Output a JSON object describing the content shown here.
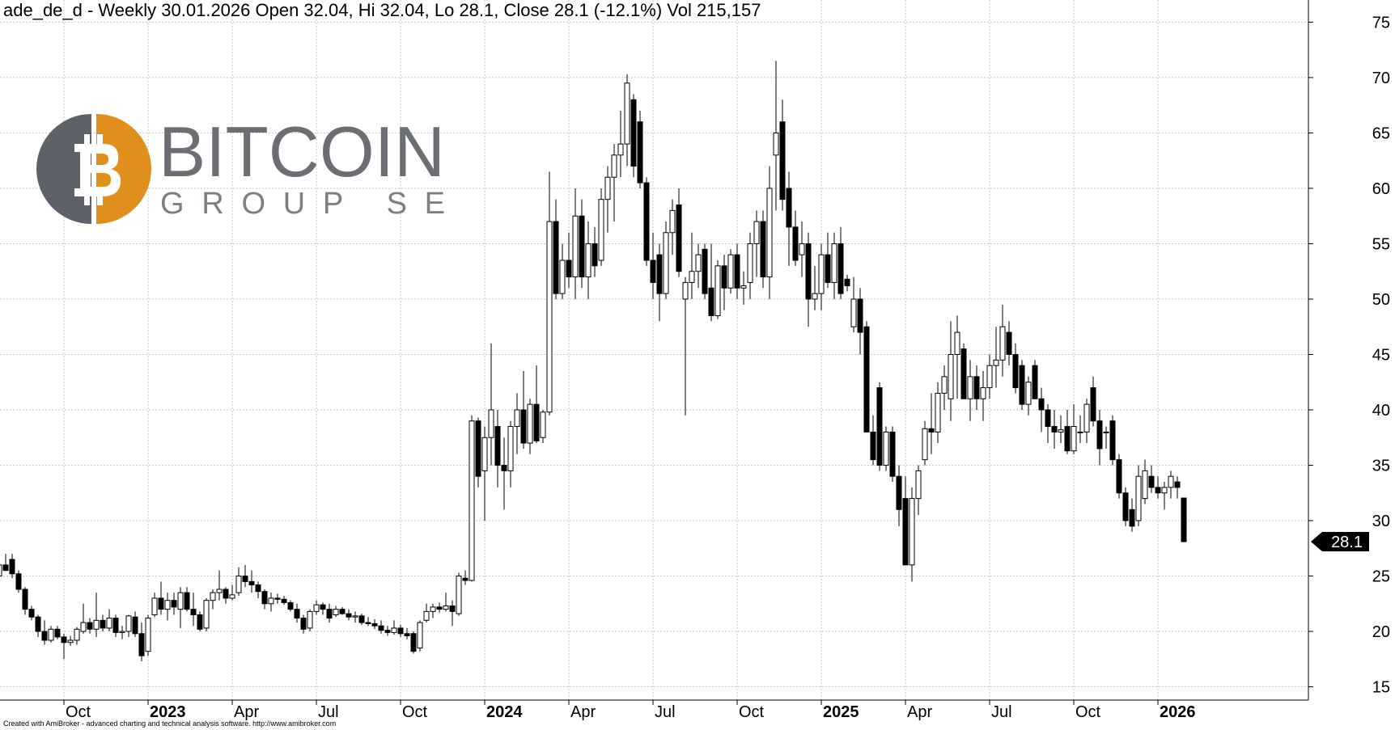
{
  "chart_data": {
    "type": "candlestick",
    "title": "ade_de_d - Weekly 30.01.2026 Open 32.04, Hi 32.04, Lo 28.1, Close 28.1 (-12.1%) Vol 215,157",
    "categories": [
      null,
      null,
      null,
      null,
      null,
      null,
      null,
      null,
      null,
      null,
      "Oct",
      null,
      null,
      null,
      null,
      null,
      null,
      null,
      null,
      null,
      null,
      null,
      null,
      "2023",
      null,
      null,
      null,
      null,
      null,
      null,
      null,
      null,
      null,
      null,
      null,
      null,
      "Apr",
      null,
      null,
      null,
      null,
      null,
      null,
      null,
      null,
      null,
      null,
      null,
      null,
      "Jul",
      null,
      null,
      null,
      null,
      null,
      null,
      null,
      null,
      null,
      null,
      null,
      null,
      "Oct",
      null,
      null,
      null,
      null,
      null,
      null,
      null,
      null,
      null,
      null,
      null,
      null,
      "2024",
      null,
      null,
      null,
      null,
      null,
      null,
      null,
      null,
      null,
      null,
      null,
      null,
      "Apr",
      null,
      null,
      null,
      null,
      null,
      null,
      null,
      null,
      null,
      null,
      null,
      null,
      "Jul",
      null,
      null,
      null,
      null,
      null,
      null,
      null,
      null,
      null,
      null,
      null,
      null,
      "Oct",
      null,
      null,
      null,
      null,
      null,
      null,
      null,
      null,
      null,
      null,
      null,
      null,
      "2025",
      null,
      null,
      null,
      null,
      null,
      null,
      null,
      null,
      null,
      null,
      null,
      null,
      "Apr",
      null,
      null,
      null,
      null,
      null,
      null,
      null,
      null,
      null,
      null,
      null,
      null,
      "Jul",
      null,
      null,
      null,
      null,
      null,
      null,
      null,
      null,
      null,
      null,
      null,
      null,
      "Oct",
      null,
      null,
      null,
      null,
      null,
      null,
      null,
      null,
      null,
      null,
      null,
      null,
      "2026",
      null,
      null,
      null,
      null
    ],
    "open": [
      25,
      26,
      26.5,
      25.2,
      23.8,
      22,
      21.3,
      20,
      19.2,
      20.2,
      19.5,
      19,
      19.2,
      20,
      20.8,
      20.2,
      21,
      20.3,
      21.2,
      19.9,
      20,
      21.3,
      19.8,
      18.2,
      21.5,
      23,
      22,
      22.8,
      22,
      23.5,
      22,
      21.5,
      20.3,
      22.8,
      23.5,
      23.8,
      23,
      23.5,
      25,
      24.5,
      24.2,
      23.6,
      22.5,
      23,
      22.9,
      22.6,
      22,
      21.2,
      20.3,
      21.8,
      22.4,
      22,
      21.5,
      22,
      21.6,
      21.3,
      21.4,
      20.8,
      20.7,
      20.5,
      20.1,
      19.9,
      20.3,
      19.8,
      19.8,
      18.5,
      21,
      21.8,
      22.2,
      22,
      22.3,
      21.6,
      24.8,
      24.6,
      39,
      34.5,
      37.5,
      38.5,
      35,
      34.5,
      38.5,
      40,
      37,
      40.5,
      37.5,
      39.8,
      57,
      50.5,
      53.5,
      52,
      57.5,
      52,
      55,
      53.5,
      59,
      61,
      63,
      64,
      68,
      66,
      60.5,
      53.5,
      54,
      50.5,
      56,
      58.5,
      50,
      51.5,
      52.5,
      54.5,
      51,
      48.5,
      53,
      51,
      54,
      51,
      51.5,
      55,
      57,
      52,
      63,
      66,
      60,
      56.5,
      54,
      55,
      50,
      50.5,
      54,
      51.5,
      55,
      51.8,
      47.5,
      50,
      47.5,
      38,
      42,
      35,
      38,
      34,
      32,
      26,
      32,
      35.5,
      38.3,
      38,
      41.5,
      41,
      45,
      45.5,
      41,
      43,
      41,
      42,
      44,
      44.5,
      47,
      45,
      44,
      40.5,
      44,
      41,
      40,
      38.5,
      38,
      38.5,
      36.3,
      38,
      38,
      42,
      39,
      38,
      39,
      35.5,
      32.5,
      31,
      30,
      32,
      34,
      33,
      32.5,
      33,
      33.5,
      32.04
    ],
    "high": [
      26.5,
      27,
      27,
      25.5,
      24,
      22.3,
      21.5,
      21,
      20.5,
      20.5,
      19.8,
      19.6,
      20.4,
      22.5,
      21.2,
      23.5,
      21.5,
      22,
      21.5,
      20.5,
      21.5,
      21.8,
      20.8,
      21.5,
      23.5,
      24.5,
      23.5,
      23.5,
      24,
      24,
      23.5,
      21.8,
      23,
      23.8,
      25.5,
      24,
      24.2,
      25.8,
      26,
      25.5,
      24.5,
      23.8,
      23.5,
      23.4,
      23.2,
      22.8,
      22.5,
      21.5,
      22,
      22.8,
      22.6,
      22.5,
      22.3,
      22.2,
      22,
      21.8,
      21.6,
      21.3,
      21.1,
      21,
      20.5,
      21,
      20.6,
      20.3,
      20,
      21,
      22.5,
      22.5,
      22.6,
      23.5,
      22.8,
      25.3,
      25.5,
      39.5,
      39.3,
      38.5,
      46,
      40,
      37.5,
      39,
      41.5,
      43.5,
      41,
      44,
      40,
      61.5,
      59,
      55,
      56,
      60,
      59,
      57,
      56.5,
      60,
      62,
      64,
      67,
      70.3,
      68.5,
      67,
      61,
      56,
      55,
      57,
      59,
      60,
      52,
      56,
      55,
      55,
      55,
      53.5,
      54,
      54.5,
      55,
      52.5,
      56,
      58,
      58,
      62,
      71.5,
      68,
      61.5,
      58,
      57,
      56,
      53,
      55,
      56,
      56,
      56.5,
      52.2,
      52,
      51,
      48,
      39.5,
      42.5,
      38.5,
      38.5,
      35,
      34,
      33,
      35,
      39,
      41.5,
      42.5,
      44,
      48,
      48.5,
      46,
      44.5,
      44,
      43.5,
      45,
      47.5,
      49.5,
      48,
      46,
      44.5,
      43,
      44.5,
      42,
      40.5,
      40,
      39.5,
      40,
      40.5,
      39.5,
      41,
      43,
      40,
      38.5,
      39.5,
      36,
      33,
      32,
      35,
      35.5,
      35,
      34,
      33.5,
      34.5,
      34,
      32.04
    ],
    "low": [
      24.5,
      25.5,
      24.8,
      23.5,
      21.5,
      21,
      19.5,
      18.8,
      19,
      19.3,
      17.5,
      18.7,
      18.8,
      19.8,
      19.8,
      19.5,
      20,
      20,
      19.5,
      19.3,
      19.5,
      19.5,
      17.3,
      17.8,
      21.3,
      21.5,
      21,
      21.5,
      20.3,
      21.8,
      20.5,
      20,
      20,
      22,
      22.8,
      22.5,
      22.8,
      23.2,
      24,
      23.5,
      23,
      22,
      21.8,
      22.5,
      22.4,
      21.8,
      20.8,
      19.8,
      20,
      21.5,
      21.5,
      20.8,
      21.3,
      21.5,
      21,
      20.8,
      20.6,
      20.5,
      20.2,
      19.8,
      19.6,
      19.7,
      19.5,
      19.3,
      18,
      18.2,
      20.8,
      21.2,
      21.7,
      21.8,
      20.5,
      21.4,
      24.2,
      24.5,
      33,
      30,
      35,
      33,
      31,
      33,
      36,
      36.5,
      36,
      37,
      37,
      39.5,
      50,
      50,
      51,
      50,
      51,
      50,
      52,
      53,
      56,
      57,
      61,
      62,
      61,
      60,
      53,
      50,
      48,
      50,
      54,
      52,
      39.5,
      50,
      51,
      50,
      48,
      48.2,
      49,
      50.5,
      50,
      49.5,
      50,
      52,
      51,
      50,
      58,
      58,
      53,
      53,
      52,
      47.5,
      49,
      49,
      51,
      50,
      50,
      50.7,
      47,
      45,
      38,
      35,
      34.5,
      34.5,
      33.5,
      29.5,
      26,
      24.5,
      30.5,
      35,
      36,
      37,
      40,
      39,
      41,
      41,
      39,
      40,
      39,
      41,
      42,
      43,
      44,
      41.5,
      40,
      39.5,
      41,
      38,
      37,
      36.5,
      37,
      36,
      36,
      37,
      37,
      38.5,
      35,
      36.5,
      35,
      32,
      29.5,
      29,
      29.5,
      31.5,
      32.5,
      32,
      31,
      32,
      32,
      28.1
    ],
    "close": [
      26,
      25.5,
      25.2,
      23.8,
      22,
      21.3,
      20,
      19.2,
      20.2,
      19.5,
      19,
      19.2,
      20.2,
      20.8,
      20.2,
      21,
      20.3,
      21.2,
      19.9,
      20,
      21.4,
      19.8,
      17.8,
      21.2,
      23,
      22,
      22.8,
      22.2,
      23.5,
      22,
      21.5,
      20.2,
      22.8,
      23.5,
      23.8,
      23,
      23.3,
      25,
      24.5,
      24.2,
      23.6,
      22.5,
      23,
      22.9,
      22.6,
      22,
      21.2,
      20.2,
      21.8,
      22.4,
      22,
      21.2,
      22,
      21.6,
      21.3,
      21.4,
      20.8,
      20.7,
      20.5,
      20.1,
      19.9,
      20.3,
      19.8,
      19.6,
      18.2,
      20.8,
      21.8,
      22.2,
      22,
      22.3,
      21.8,
      25,
      24.6,
      39,
      34,
      37.5,
      40,
      35,
      34.5,
      38.5,
      40,
      37,
      40.5,
      37.2,
      39.8,
      57,
      50.5,
      53.5,
      52,
      57.5,
      52,
      55,
      53,
      59,
      61,
      63,
      64,
      69.5,
      62,
      60.5,
      53.5,
      51.5,
      50.5,
      56,
      58,
      52.5,
      51.5,
      52.5,
      54,
      50.5,
      48.5,
      53,
      51,
      54,
      51,
      51.2,
      55,
      57,
      52,
      60,
      65,
      59,
      56.5,
      53.5,
      55,
      50,
      50.5,
      54,
      51.5,
      55,
      50.5,
      51.2,
      50,
      47,
      38,
      35.5,
      35,
      38,
      34,
      31,
      26,
      32,
      34.5,
      38.3,
      38,
      41.5,
      43,
      45,
      47,
      41,
      43,
      41,
      42,
      44,
      44.5,
      47.5,
      45,
      42,
      40.5,
      42.5,
      41,
      40,
      38.5,
      38,
      38.2,
      36.3,
      38.5,
      38,
      40.5,
      39,
      36.5,
      38,
      35.5,
      32.5,
      30,
      29.5,
      34,
      34.5,
      33,
      32.5,
      33,
      34,
      33,
      28.1
    ],
    "up_color": "#ffffff",
    "down_color": "#000000",
    "ylim": [
      13.8,
      77
    ],
    "yticks": [
      15,
      20,
      25,
      30,
      35,
      40,
      45,
      50,
      55,
      60,
      65,
      70,
      75
    ],
    "grid": true
  },
  "logo": {
    "name": "BITCOIN",
    "subtitle": "GROUP SE"
  },
  "footer": "Created with AmiBroker - advanced charting and technical analysis software. http://www.amibroker.com"
}
